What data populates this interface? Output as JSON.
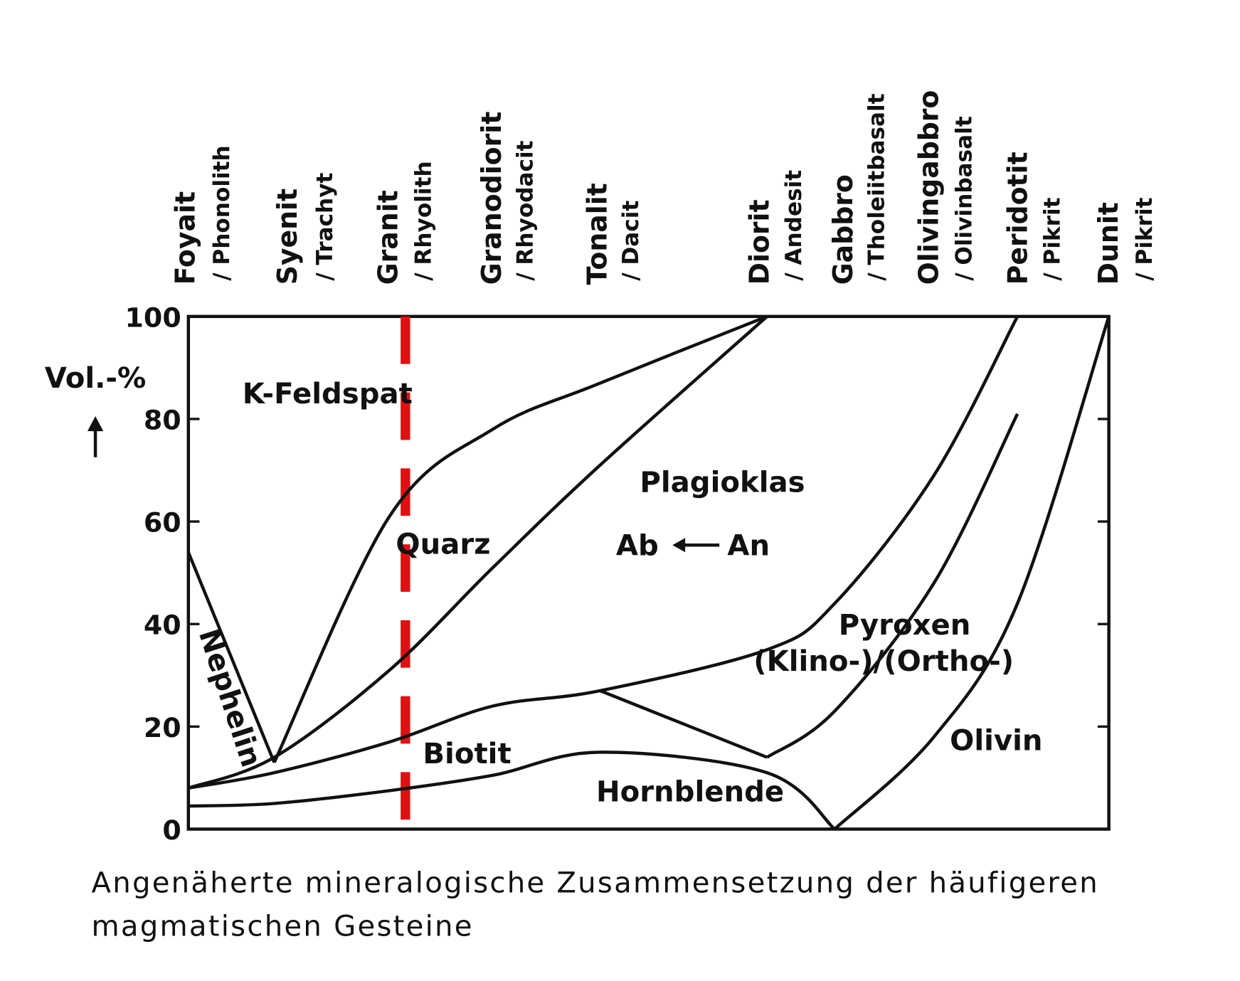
{
  "chart_data": {
    "type": "composition",
    "y_label": "Vol.-%",
    "ylim": [
      0,
      100
    ],
    "yticks": [
      0,
      20,
      40,
      60,
      80,
      100
    ],
    "categories": [
      {
        "plutonic": "Foyait",
        "volcanic": "/ Phonolith"
      },
      {
        "plutonic": "Syenit",
        "volcanic": "/ Trachyt"
      },
      {
        "plutonic": "Granit",
        "volcanic": "/ Rhyolith"
      },
      {
        "plutonic": "Granodiorit",
        "volcanic": "/ Rhyodacit"
      },
      {
        "plutonic": "Tonalit",
        "volcanic": "/ Dacit"
      },
      {
        "plutonic": "Diorit",
        "volcanic": "/ Andesit"
      },
      {
        "plutonic": "Gabbro",
        "volcanic": "/ Tholeiitbasalt"
      },
      {
        "plutonic": "Olivingabbro",
        "volcanic": "/ Olivinbasalt"
      },
      {
        "plutonic": "Peridotit",
        "volcanic": "/ Pikrit"
      },
      {
        "plutonic": "Dunit",
        "volcanic": "/ Pikrit"
      }
    ],
    "boundaries": [
      {
        "values": [
          54,
          13,
          null,
          null,
          null,
          null,
          null,
          null,
          null,
          null
        ]
      },
      {
        "values": [
          null,
          13,
          61,
          78,
          87,
          100,
          null,
          null,
          null,
          null
        ]
      },
      {
        "values": [
          8,
          14,
          31,
          51,
          71,
          100,
          null,
          null,
          null,
          null
        ]
      },
      {
        "values": [
          8,
          11,
          17,
          24,
          27,
          35,
          44,
          69,
          100,
          null
        ]
      },
      {
        "values": [
          4.5,
          5,
          7.5,
          10.5,
          15,
          11,
          0,
          null,
          null,
          null
        ]
      },
      {
        "values": [
          null,
          null,
          null,
          null,
          27,
          14,
          null,
          null,
          null,
          null
        ]
      },
      {
        "values": [
          null,
          null,
          null,
          null,
          null,
          14,
          23,
          48,
          81,
          null
        ]
      },
      {
        "values": [
          null,
          null,
          null,
          null,
          null,
          null,
          0,
          18,
          44,
          100
        ]
      }
    ],
    "regions": [
      "K-Feldspat",
      "Quarz",
      "Plagioklas",
      "Ab",
      "An",
      "Nephelin",
      "Biotit",
      "Hornblende",
      "Pyroxen",
      "(Klino-)/(Ortho-)",
      "Olivin"
    ],
    "caption": [
      "Angenäherte mineralogische Zusammensetzung der häufigeren",
      "magmatischen Gesteine"
    ]
  }
}
